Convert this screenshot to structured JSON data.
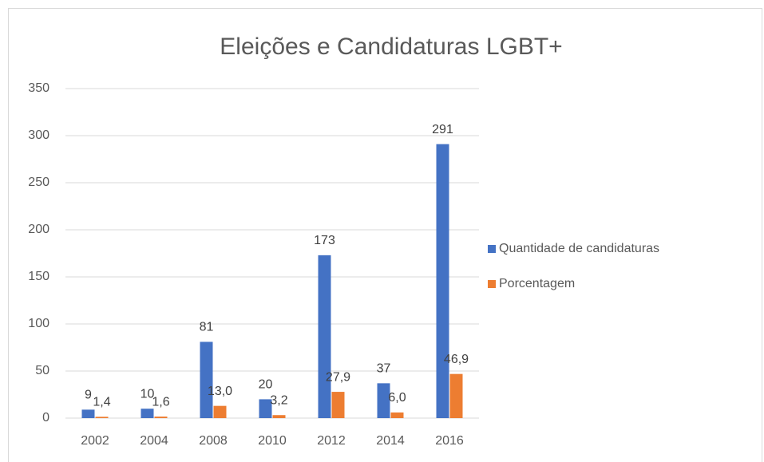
{
  "chart_data": {
    "type": "bar",
    "title": "Eleições e Candidaturas LGBT+",
    "categories": [
      "2002",
      "2004",
      "2008",
      "2010",
      "2012",
      "2014",
      "2016"
    ],
    "series": [
      {
        "name": "Quantidade de candidaturas",
        "color": "#4472c4",
        "values": [
          9,
          10,
          81,
          20,
          173,
          37,
          291
        ]
      },
      {
        "name": "Porcentagem",
        "color": "#ed7d31",
        "values": [
          1.4,
          1.6,
          13.0,
          3.2,
          27.9,
          6.0,
          46.9
        ],
        "value_labels": [
          "1,4",
          "1,6",
          "13,0",
          "3,2",
          "27,9",
          "6,0",
          "46,9"
        ]
      }
    ],
    "ylim": [
      0,
      350
    ],
    "yticks": [
      0,
      50,
      100,
      150,
      200,
      250,
      300,
      350
    ],
    "grid": true,
    "legend": "right"
  }
}
